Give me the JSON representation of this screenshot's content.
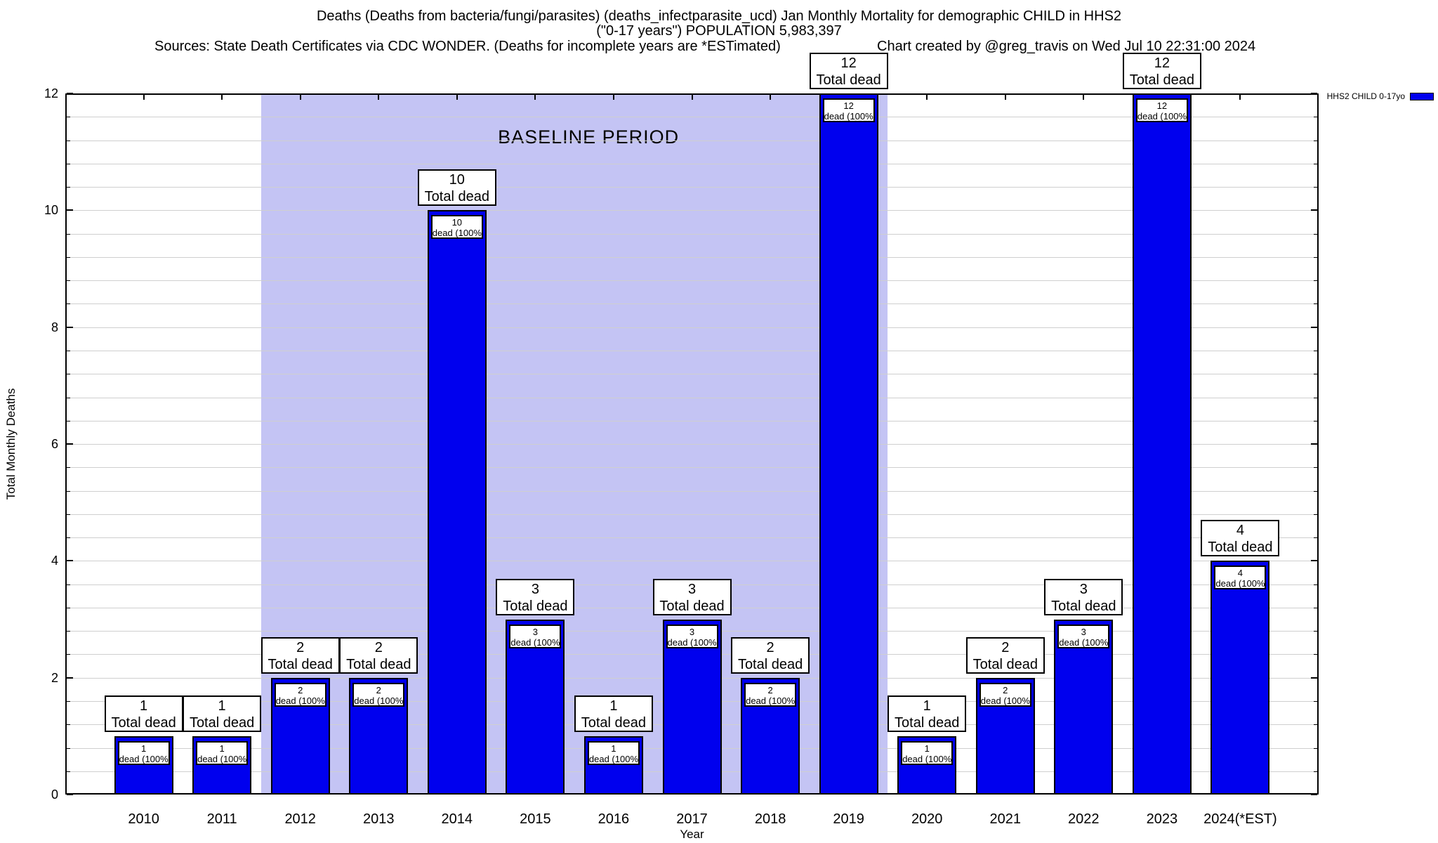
{
  "header": {
    "title_line1": "Deaths (Deaths from bacteria/fungi/parasites) (deaths_infectparasite_ucd) Jan Monthly Mortality for demographic CHILD in HHS2",
    "title_line2": "(\"0-17 years\") POPULATION 5,983,397",
    "sources_line": "Sources: State Death Certificates via CDC WONDER. (Deaths for incomplete years are *ESTimated)",
    "credit_line": "Chart created by @greg_travis on Wed Jul 10 22:31:00 2024"
  },
  "legend": {
    "label": "HHS2 CHILD 0-17yo",
    "swatch_color": "#0000ee"
  },
  "chart_data": {
    "type": "bar",
    "title": "Deaths (Deaths from bacteria/fungi/parasites) (deaths_infectparasite_ucd) Jan Monthly Mortality for demographic CHILD in HHS2 (\"0-17 years\") POPULATION 5,983,397",
    "xlabel": "Year",
    "ylabel": "Total Monthly Deaths",
    "categories": [
      "2010",
      "2011",
      "2012",
      "2013",
      "2014",
      "2015",
      "2016",
      "2017",
      "2018",
      "2019",
      "2020",
      "2021",
      "2022",
      "2023",
      "2024(*EST)"
    ],
    "values": [
      1,
      1,
      2,
      2,
      10,
      3,
      1,
      3,
      2,
      12,
      1,
      2,
      3,
      12,
      4
    ],
    "bar_color": "#0000ee",
    "ylim": [
      0,
      12
    ],
    "yticks": [
      0,
      2,
      4,
      6,
      8,
      10,
      12
    ],
    "minor_grid_step": 0.4,
    "grid": "horizontal",
    "legend_entries": [
      "HHS2 CHILD 0-17yo"
    ],
    "legend_position": "top-right",
    "annotations": {
      "outer_box_label": "Total dead",
      "inner_box_label": "dead (100%)"
    },
    "baseline_band": {
      "label": "BASELINE PERIOD",
      "start_category": "2012",
      "end_category": "2019",
      "color": "#c4c4f4"
    }
  }
}
